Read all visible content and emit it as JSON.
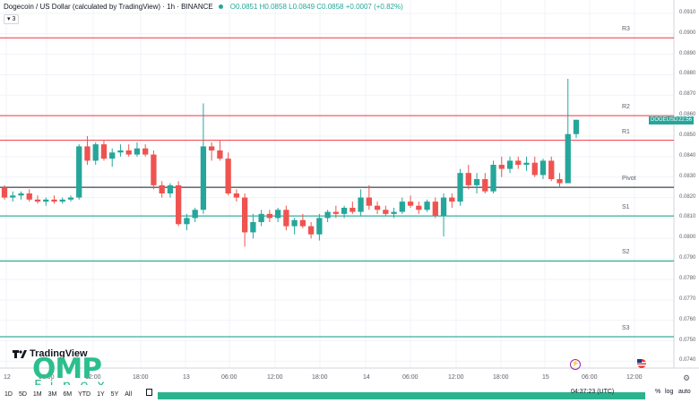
{
  "header": {
    "title": "Dogecoin / US Dollar (calculated by TradingView) · 1h · BINANCE",
    "ohlc": "O0.0851 H0.0858 L0.0849 C0.0858 +0.0007 (+0.82%)",
    "indicator_count": "3"
  },
  "price_badge": {
    "symbol": "DOGEUSD",
    "time": "22:56"
  },
  "chart_data": {
    "type": "candlestick",
    "symbol": "DOGEUSD",
    "timeframe": "1h",
    "x_tick_labels": [
      "12",
      "06:00",
      "12:00",
      "18:00",
      "13",
      "06:00",
      "12:00",
      "18:00",
      "14",
      "06:00",
      "12:00",
      "18:00",
      "15",
      "06:00",
      "12:00"
    ],
    "y_tick_labels": [
      "0.0910",
      "0.0900",
      "0.0890",
      "0.0880",
      "0.0870",
      "0.0860",
      "0.0850",
      "0.0840",
      "0.0830",
      "0.0820",
      "0.0810",
      "0.0800",
      "0.0790",
      "0.0780",
      "0.0770",
      "0.0760",
      "0.0750",
      "0.0740"
    ],
    "ylim": [
      0.0738,
      0.0913
    ],
    "pivot_levels": [
      {
        "label": "R3",
        "value": 0.0898,
        "color": "#f23645"
      },
      {
        "label": "R2",
        "value": 0.086,
        "color": "#f23645"
      },
      {
        "label": "R1",
        "value": 0.0848,
        "color": "#f23645"
      },
      {
        "label": "Pivot",
        "value": 0.0825,
        "color": "#131722"
      },
      {
        "label": "S1",
        "value": 0.0811,
        "color": "#089981"
      },
      {
        "label": "S2",
        "value": 0.0789,
        "color": "#089981"
      },
      {
        "label": "S3",
        "value": 0.0752,
        "color": "#089981"
      }
    ],
    "candles": [
      [
        0.0825,
        0.0826,
        0.0819,
        0.082
      ],
      [
        0.082,
        0.0823,
        0.0818,
        0.0821
      ],
      [
        0.0821,
        0.0823,
        0.0819,
        0.0822
      ],
      [
        0.0822,
        0.0824,
        0.0818,
        0.0819
      ],
      [
        0.0819,
        0.0821,
        0.0817,
        0.0818
      ],
      [
        0.0818,
        0.082,
        0.0816,
        0.0819
      ],
      [
        0.0819,
        0.0821,
        0.0817,
        0.0818
      ],
      [
        0.0818,
        0.082,
        0.0817,
        0.0819
      ],
      [
        0.0819,
        0.0821,
        0.0818,
        0.082
      ],
      [
        0.082,
        0.0846,
        0.0819,
        0.0845
      ],
      [
        0.0845,
        0.085,
        0.0836,
        0.0838
      ],
      [
        0.0838,
        0.0847,
        0.0836,
        0.0846
      ],
      [
        0.0846,
        0.0848,
        0.0838,
        0.0839
      ],
      [
        0.0839,
        0.0844,
        0.0835,
        0.0842
      ],
      [
        0.0842,
        0.0846,
        0.084,
        0.0843
      ],
      [
        0.0843,
        0.0846,
        0.084,
        0.0841
      ],
      [
        0.0841,
        0.0847,
        0.084,
        0.0844
      ],
      [
        0.0844,
        0.0846,
        0.084,
        0.0841
      ],
      [
        0.0841,
        0.0843,
        0.0824,
        0.0826
      ],
      [
        0.0826,
        0.0828,
        0.082,
        0.0822
      ],
      [
        0.0822,
        0.0827,
        0.082,
        0.0826
      ],
      [
        0.0826,
        0.0828,
        0.0806,
        0.0807
      ],
      [
        0.0807,
        0.0812,
        0.0804,
        0.081
      ],
      [
        0.081,
        0.0815,
        0.0808,
        0.0814
      ],
      [
        0.0814,
        0.0866,
        0.0812,
        0.0845
      ],
      [
        0.0845,
        0.0847,
        0.0838,
        0.0843
      ],
      [
        0.0843,
        0.0848,
        0.0838,
        0.0839
      ],
      [
        0.0839,
        0.0842,
        0.0821,
        0.0822
      ],
      [
        0.0822,
        0.0824,
        0.0818,
        0.082
      ],
      [
        0.082,
        0.0822,
        0.0796,
        0.0803
      ],
      [
        0.0803,
        0.0812,
        0.08,
        0.0808
      ],
      [
        0.0808,
        0.0814,
        0.0806,
        0.0812
      ],
      [
        0.0812,
        0.0814,
        0.0808,
        0.081
      ],
      [
        0.081,
        0.0815,
        0.0808,
        0.0814
      ],
      [
        0.0814,
        0.0816,
        0.0804,
        0.0806
      ],
      [
        0.0806,
        0.081,
        0.0802,
        0.0809
      ],
      [
        0.0809,
        0.0812,
        0.0805,
        0.0806
      ],
      [
        0.0806,
        0.0808,
        0.08,
        0.0802
      ],
      [
        0.0802,
        0.0812,
        0.0799,
        0.081
      ],
      [
        0.081,
        0.0814,
        0.0808,
        0.0813
      ],
      [
        0.0813,
        0.0816,
        0.081,
        0.0812
      ],
      [
        0.0812,
        0.0816,
        0.081,
        0.0815
      ],
      [
        0.0815,
        0.0818,
        0.0812,
        0.0813
      ],
      [
        0.0813,
        0.0824,
        0.0811,
        0.082
      ],
      [
        0.082,
        0.0826,
        0.0814,
        0.0816
      ],
      [
        0.0816,
        0.0818,
        0.0812,
        0.0814
      ],
      [
        0.0814,
        0.0816,
        0.0811,
        0.0812
      ],
      [
        0.0812,
        0.0815,
        0.081,
        0.0813
      ],
      [
        0.0813,
        0.082,
        0.0812,
        0.0818
      ],
      [
        0.0818,
        0.0821,
        0.0815,
        0.0816
      ],
      [
        0.0816,
        0.0818,
        0.0812,
        0.0814
      ],
      [
        0.0814,
        0.0819,
        0.0813,
        0.0818
      ],
      [
        0.0818,
        0.082,
        0.081,
        0.0811
      ],
      [
        0.0811,
        0.0822,
        0.0801,
        0.082
      ],
      [
        0.082,
        0.0822,
        0.0815,
        0.0818
      ],
      [
        0.0818,
        0.0834,
        0.0816,
        0.0832
      ],
      [
        0.0832,
        0.0836,
        0.0824,
        0.0826
      ],
      [
        0.0826,
        0.0832,
        0.0822,
        0.0829
      ],
      [
        0.0829,
        0.0832,
        0.0822,
        0.0823
      ],
      [
        0.0823,
        0.0838,
        0.0822,
        0.0836
      ],
      [
        0.0836,
        0.084,
        0.083,
        0.0834
      ],
      [
        0.0834,
        0.084,
        0.0832,
        0.0838
      ],
      [
        0.0838,
        0.084,
        0.0834,
        0.0836
      ],
      [
        0.0836,
        0.084,
        0.0833,
        0.0837
      ],
      [
        0.0837,
        0.084,
        0.083,
        0.0831
      ],
      [
        0.0831,
        0.0839,
        0.0829,
        0.0838
      ],
      [
        0.0838,
        0.084,
        0.0828,
        0.0829
      ],
      [
        0.0829,
        0.0832,
        0.0825,
        0.0827
      ],
      [
        0.0827,
        0.0878,
        0.0827,
        0.0851
      ],
      [
        0.0851,
        0.0858,
        0.0849,
        0.0858
      ]
    ],
    "up_color": "#26a69a",
    "down_color": "#ef5350",
    "last_price": 0.0858
  },
  "footer": {
    "timeframes": [
      "1D",
      "5D",
      "1M",
      "3M",
      "6M",
      "YTD",
      "1Y",
      "5Y",
      "All"
    ],
    "clock": "04:37:23 (UTC)",
    "percent": "%",
    "log": "log",
    "auto": "auto"
  },
  "branding": {
    "tv_logo": "TradingView",
    "watermark_main": "OMP",
    "watermark_sub": "Finex"
  }
}
